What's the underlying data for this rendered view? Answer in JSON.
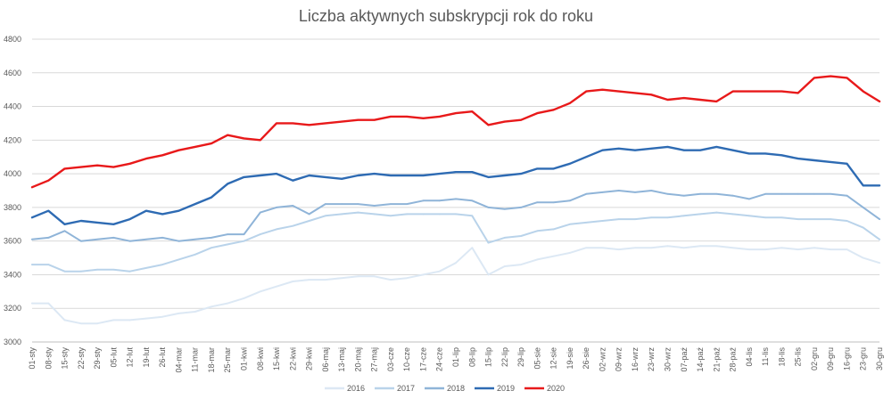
{
  "chart_data": {
    "type": "line",
    "title": "Liczba aktywnych subskrypcji rok do roku",
    "xlabel": "",
    "ylabel": "",
    "ylim": [
      3000,
      4800
    ],
    "yticks": [
      3000,
      3200,
      3400,
      3600,
      3800,
      4000,
      4200,
      4400,
      4600,
      4800
    ],
    "grid": true,
    "legend_position": "bottom",
    "categories": [
      "01-sty",
      "08-sty",
      "15-sty",
      "22-sty",
      "29-sty",
      "05-lut",
      "12-lut",
      "19-lut",
      "26-lut",
      "04-mar",
      "11-mar",
      "18-mar",
      "25-mar",
      "01-kwi",
      "08-kwi",
      "15-kwi",
      "22-kwi",
      "29-kwi",
      "06-maj",
      "13-maj",
      "20-maj",
      "27-maj",
      "03-cze",
      "10-cze",
      "17-cze",
      "24-cze",
      "01-lip",
      "08-lip",
      "15-lip",
      "22-lip",
      "29-lip",
      "05-sie",
      "12-sie",
      "19-sie",
      "26-sie",
      "02-wrz",
      "09-wrz",
      "16-wrz",
      "23-wrz",
      "30-wrz",
      "07-paź",
      "14-paź",
      "21-paź",
      "28-paź",
      "04-lis",
      "11-lis",
      "18-lis",
      "25-lis",
      "02-gru",
      "09-gru",
      "16-gru",
      "23-gru",
      "30-gru"
    ],
    "series": [
      {
        "name": "2016",
        "color": "#dce8f4",
        "values": [
          3230,
          3230,
          3130,
          3110,
          3110,
          3130,
          3130,
          3140,
          3150,
          3170,
          3180,
          3210,
          3230,
          3260,
          3300,
          3330,
          3360,
          3370,
          3370,
          3380,
          3390,
          3390,
          3370,
          3380,
          3400,
          3420,
          3470,
          3560,
          3400,
          3450,
          3460,
          3490,
          3510,
          3530,
          3560,
          3560,
          3550,
          3560,
          3560,
          3570,
          3560,
          3570,
          3570,
          3560,
          3550,
          3550,
          3560,
          3550,
          3560,
          3550,
          3550,
          3500,
          3470
        ]
      },
      {
        "name": "2017",
        "color": "#b9d3ea",
        "values": [
          3460,
          3460,
          3420,
          3420,
          3430,
          3430,
          3420,
          3440,
          3460,
          3490,
          3520,
          3560,
          3580,
          3600,
          3640,
          3670,
          3690,
          3720,
          3750,
          3760,
          3770,
          3760,
          3750,
          3760,
          3760,
          3760,
          3760,
          3750,
          3590,
          3620,
          3630,
          3660,
          3670,
          3700,
          3710,
          3720,
          3730,
          3730,
          3740,
          3740,
          3750,
          3760,
          3770,
          3760,
          3750,
          3740,
          3740,
          3730,
          3730,
          3730,
          3720,
          3680,
          3610
        ]
      },
      {
        "name": "2018",
        "color": "#8fb4d8",
        "values": [
          3610,
          3620,
          3660,
          3600,
          3610,
          3620,
          3600,
          3610,
          3620,
          3600,
          3610,
          3620,
          3640,
          3640,
          3770,
          3800,
          3810,
          3760,
          3820,
          3820,
          3820,
          3810,
          3820,
          3820,
          3840,
          3840,
          3850,
          3840,
          3800,
          3790,
          3800,
          3830,
          3830,
          3840,
          3880,
          3890,
          3900,
          3890,
          3900,
          3880,
          3870,
          3880,
          3880,
          3870,
          3850,
          3880,
          3880,
          3880,
          3880,
          3880,
          3870,
          3800,
          3730
        ]
      },
      {
        "name": "2019",
        "color": "#2e6bb3",
        "values": [
          3740,
          3780,
          3700,
          3720,
          3710,
          3700,
          3730,
          3780,
          3760,
          3780,
          3820,
          3860,
          3940,
          3980,
          3990,
          4000,
          3960,
          3990,
          3980,
          3970,
          3990,
          4000,
          3990,
          3990,
          3990,
          4000,
          4010,
          4010,
          3980,
          3990,
          4000,
          4030,
          4030,
          4060,
          4100,
          4140,
          4150,
          4140,
          4150,
          4160,
          4140,
          4140,
          4160,
          4140,
          4120,
          4120,
          4110,
          4090,
          4080,
          4070,
          4060,
          3930,
          3930
        ]
      },
      {
        "name": "2020",
        "color": "#e8191a",
        "values": [
          3920,
          3960,
          4030,
          4040,
          4050,
          4040,
          4060,
          4090,
          4110,
          4140,
          4160,
          4180,
          4230,
          4210,
          4200,
          4300,
          4300,
          4290,
          4300,
          4310,
          4320,
          4320,
          4340,
          4340,
          4330,
          4340,
          4360,
          4370,
          4290,
          4310,
          4320,
          4360,
          4380,
          4420,
          4490,
          4500,
          4490,
          4480,
          4470,
          4440,
          4450,
          4440,
          4430,
          4490,
          4490,
          4490,
          4490,
          4480,
          4570,
          4580,
          4570,
          4490,
          4430
        ]
      }
    ]
  }
}
